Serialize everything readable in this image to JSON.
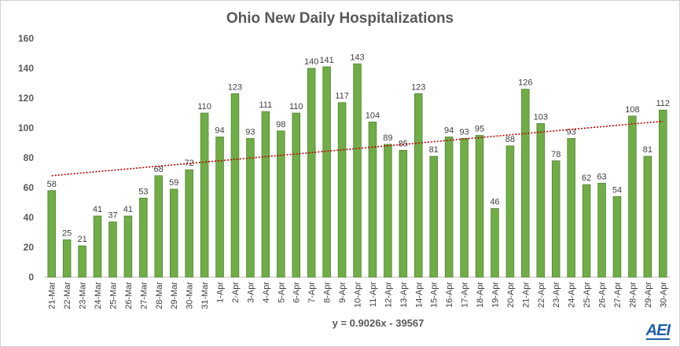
{
  "chart_data": {
    "type": "bar",
    "title": "Ohio New Daily Hospitalizations",
    "xlabel": "",
    "ylabel": "",
    "ylim": [
      0,
      160
    ],
    "yticks": [
      0,
      20,
      40,
      60,
      80,
      100,
      120,
      140,
      160
    ],
    "grid": false,
    "legend": "none",
    "bar_color": "#70ad47",
    "bar_edge_color": "#548235",
    "trend_color": "#c00000",
    "categories": [
      "21-Mar",
      "22-Mar",
      "23-Mar",
      "24-Mar",
      "25-Mar",
      "26-Mar",
      "27-Mar",
      "28-Mar",
      "29-Mar",
      "30-Mar",
      "31-Mar",
      "1-Apr",
      "2-Apr",
      "3-Apr",
      "4-Apr",
      "5-Apr",
      "6-Apr",
      "7-Apr",
      "8-Apr",
      "9-Apr",
      "10-Apr",
      "11-Apr",
      "12-Apr",
      "13-Apr",
      "14-Apr",
      "15-Apr",
      "16-Apr",
      "17-Apr",
      "18-Apr",
      "19-Apr",
      "20-Apr",
      "21-Apr",
      "22-Apr",
      "23-Apr",
      "24-Apr",
      "25-Apr",
      "26-Apr",
      "27-Apr",
      "28-Apr",
      "29-Apr",
      "30-Apr"
    ],
    "values": [
      58,
      25,
      21,
      41,
      37,
      41,
      53,
      68,
      59,
      72,
      110,
      94,
      123,
      93,
      111,
      98,
      110,
      140,
      141,
      117,
      143,
      104,
      89,
      85,
      123,
      81,
      94,
      93,
      95,
      46,
      88,
      126,
      103,
      78,
      93,
      62,
      63,
      54,
      108,
      81,
      112
    ],
    "trendline": {
      "type": "linear",
      "equation": "y = 0.9026x - 39567",
      "start_value": 68,
      "end_value": 104.5
    }
  },
  "branding": {
    "logo_text": "AEI"
  }
}
